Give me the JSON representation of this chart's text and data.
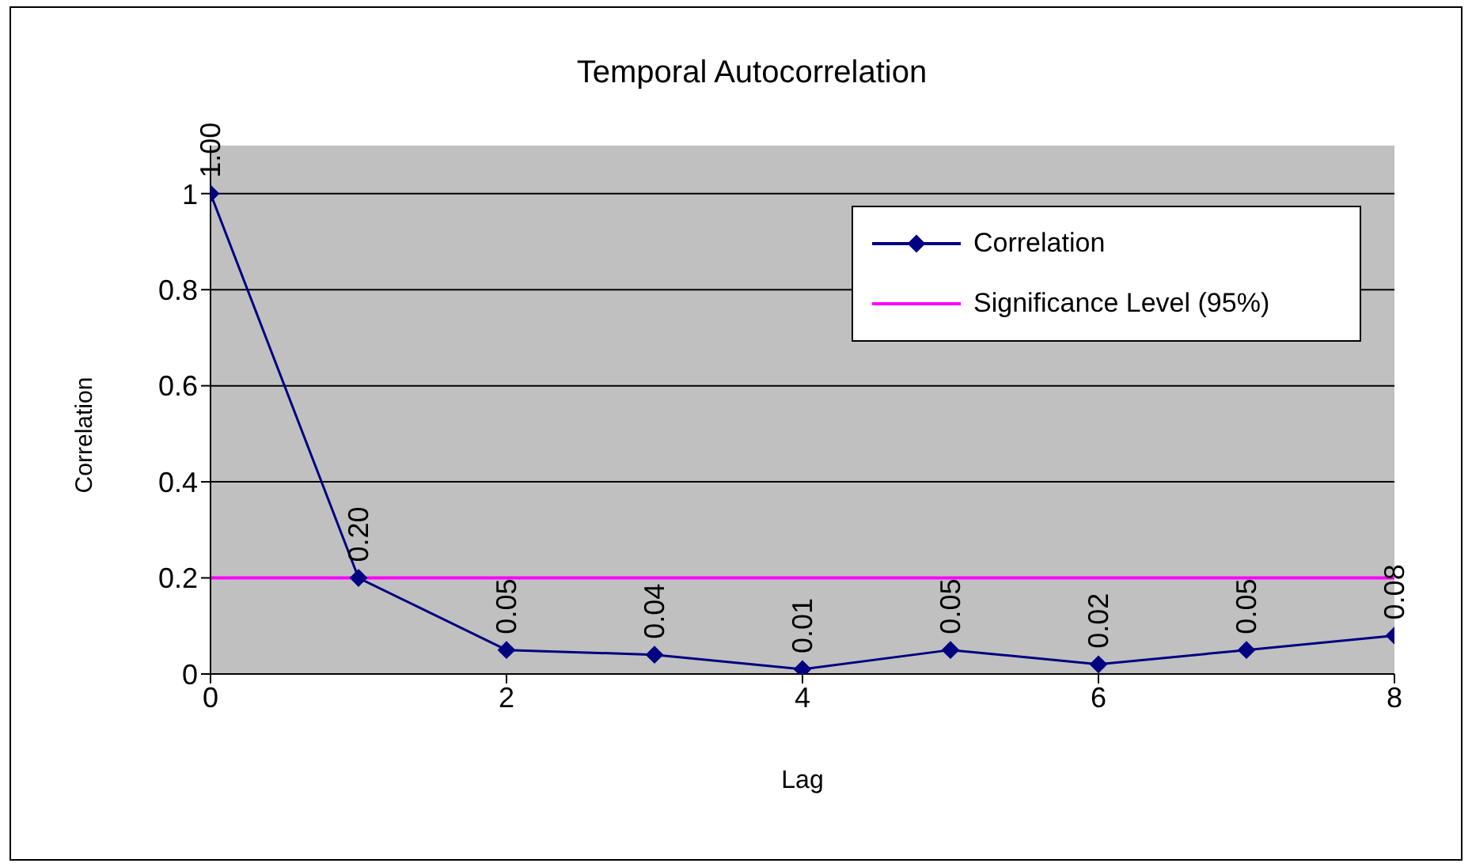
{
  "chart_data": {
    "type": "line",
    "title": "Temporal Autocorrelation",
    "xlabel": "Lag",
    "ylabel": "Correlation",
    "x": [
      0,
      1,
      2,
      3,
      4,
      5,
      6,
      7,
      8
    ],
    "series": [
      {
        "name": "Correlation",
        "color": "#000080",
        "marker": "diamond",
        "values": [
          1.0,
          0.2,
          0.05,
          0.04,
          0.01,
          0.05,
          0.02,
          0.05,
          0.08
        ],
        "value_labels": [
          "1.00",
          "0.20",
          "0.05",
          "0.04",
          "0.01",
          "0.05",
          "0.02",
          "0.05",
          "0.08"
        ]
      },
      {
        "name": "Significance Level (95%)",
        "color": "#ff00ff",
        "marker": "none",
        "values": [
          0.2,
          0.2,
          0.2,
          0.2,
          0.2,
          0.2,
          0.2,
          0.2,
          0.2
        ]
      }
    ],
    "xlim": [
      0,
      8
    ],
    "xticks": [
      0,
      2,
      4,
      6,
      8
    ],
    "ylim": [
      0,
      1.1
    ],
    "yticks": [
      0,
      0.2,
      0.4,
      0.6,
      0.8,
      1
    ],
    "grid": "y",
    "legend": "top right"
  }
}
